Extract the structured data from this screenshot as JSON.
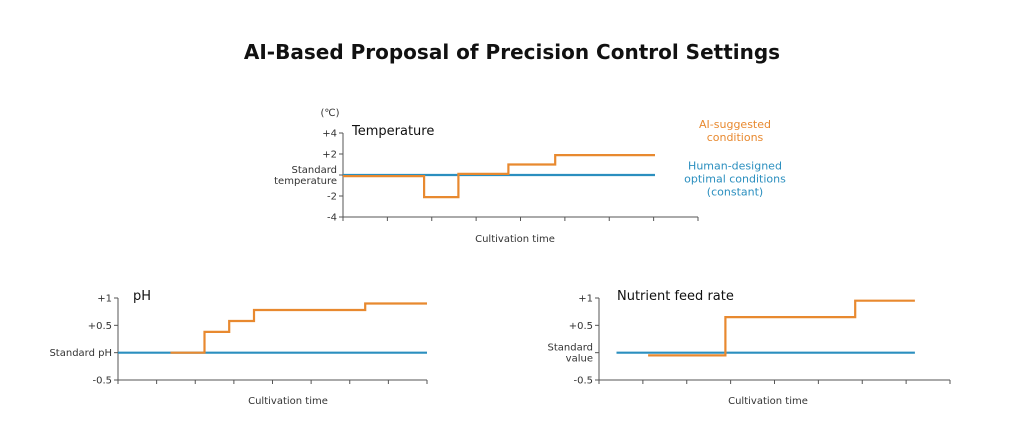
{
  "title": "AI-Based Proposal of Precision Control Settings",
  "colors": {
    "ai": "#e8892f",
    "human": "#2b8fbf",
    "axis": "#555555"
  },
  "chart_data": [
    {
      "type": "line",
      "title": "Temperature",
      "unit": "(℃)",
      "xlabel": "Cultivation time",
      "ylim": [
        -4,
        4
      ],
      "yticks": [
        {
          "value": 4,
          "label": "+4"
        },
        {
          "value": 2,
          "label": "+2"
        },
        {
          "value": 0,
          "label": "Standard\ntemperature"
        },
        {
          "value": -2,
          "label": "-2"
        },
        {
          "value": -4,
          "label": "-4"
        }
      ],
      "xlim": [
        0,
        10
      ],
      "series": [
        {
          "name": "AI-suggested\nconditions",
          "role": "ai",
          "x": [
            0,
            2.6,
            2.6,
            3.7,
            3.7,
            5.3,
            5.3,
            6.8,
            6.8,
            10
          ],
          "y": [
            -0.1,
            -0.1,
            -2.1,
            -2.1,
            0.1,
            0.1,
            1.0,
            1.0,
            1.9,
            1.9
          ]
        },
        {
          "name": "Human-designed\noptimal conditions\n(constant)",
          "role": "human",
          "x": [
            0,
            10
          ],
          "y": [
            0,
            0
          ]
        }
      ]
    },
    {
      "type": "line",
      "title": "pH",
      "xlabel": "Cultivation time",
      "ylim": [
        -0.5,
        1
      ],
      "yticks": [
        {
          "value": 1,
          "label": "+1"
        },
        {
          "value": 0.5,
          "label": "+0.5"
        },
        {
          "value": 0,
          "label": "Standard pH"
        },
        {
          "value": -0.5,
          "label": "-0.5"
        }
      ],
      "xlim": [
        0,
        10
      ],
      "series": [
        {
          "role": "ai",
          "x": [
            1.7,
            2.8,
            2.8,
            3.6,
            3.6,
            4.4,
            4.4,
            8.0,
            8.0,
            10
          ],
          "y": [
            0.0,
            0.0,
            0.38,
            0.38,
            0.58,
            0.58,
            0.78,
            0.78,
            0.9,
            0.9
          ]
        },
        {
          "role": "human",
          "x": [
            0,
            10
          ],
          "y": [
            0,
            0
          ]
        }
      ]
    },
    {
      "type": "line",
      "title": "Nutrient feed rate",
      "xlabel": "Cultivation time",
      "ylim": [
        -0.5,
        1
      ],
      "yticks": [
        {
          "value": 1,
          "label": "+1"
        },
        {
          "value": 0.5,
          "label": "+0.5"
        },
        {
          "value": 0,
          "label": "Standard\nvalue"
        },
        {
          "value": -0.5,
          "label": "-0.5"
        }
      ],
      "xlim": [
        0,
        10
      ],
      "series": [
        {
          "role": "ai",
          "x": [
            1.4,
            3.6,
            3.6,
            7.3,
            7.3,
            9.0
          ],
          "y": [
            -0.05,
            -0.05,
            0.65,
            0.65,
            0.95,
            0.95
          ]
        },
        {
          "role": "human",
          "x": [
            0.5,
            9.0
          ],
          "y": [
            0,
            0
          ]
        }
      ]
    }
  ]
}
